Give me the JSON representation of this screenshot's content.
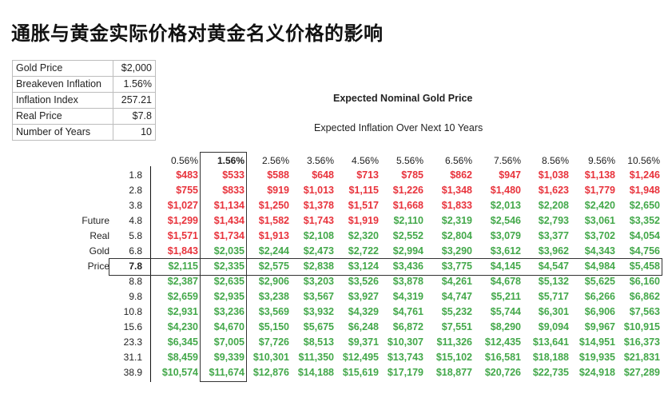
{
  "title": "通胀与黄金实际价格对黄金名义价格的影响",
  "params": [
    {
      "label": "Gold Price",
      "value": "$2,000"
    },
    {
      "label": "Breakeven Inflation",
      "value": "1.56%"
    },
    {
      "label": "Inflation Index",
      "value": "257.21"
    },
    {
      "label": "Real Price",
      "value": "$7.8"
    },
    {
      "label": "Number of Years",
      "value": "10"
    }
  ],
  "table_title": "Expected Nominal Gold Price",
  "column_axis_label": "Expected Inflation Over Next 10 Years",
  "row_axis_label": [
    "Future",
    "Real",
    "Gold",
    "Price"
  ],
  "colors": {
    "below_current": "#e8333c",
    "above_current": "#43a84a"
  },
  "chart_data": {
    "type": "table",
    "columns": [
      "0.56%",
      "1.56%",
      "2.56%",
      "3.56%",
      "4.56%",
      "5.56%",
      "6.56%",
      "7.56%",
      "8.56%",
      "9.56%",
      "10.56%"
    ],
    "selected_column": 1,
    "selected_row": 6,
    "rows": [
      {
        "label": "1.8",
        "values": [
          "$483",
          "$533",
          "$588",
          "$648",
          "$713",
          "$785",
          "$862",
          "$947",
          "$1,038",
          "$1,138",
          "$1,246"
        ]
      },
      {
        "label": "2.8",
        "values": [
          "$755",
          "$833",
          "$919",
          "$1,013",
          "$1,115",
          "$1,226",
          "$1,348",
          "$1,480",
          "$1,623",
          "$1,779",
          "$1,948"
        ]
      },
      {
        "label": "3.8",
        "values": [
          "$1,027",
          "$1,134",
          "$1,250",
          "$1,378",
          "$1,517",
          "$1,668",
          "$1,833",
          "$2,013",
          "$2,208",
          "$2,420",
          "$2,650"
        ]
      },
      {
        "label": "4.8",
        "values": [
          "$1,299",
          "$1,434",
          "$1,582",
          "$1,743",
          "$1,919",
          "$2,110",
          "$2,319",
          "$2,546",
          "$2,793",
          "$3,061",
          "$3,352"
        ]
      },
      {
        "label": "5.8",
        "values": [
          "$1,571",
          "$1,734",
          "$1,913",
          "$2,108",
          "$2,320",
          "$2,552",
          "$2,804",
          "$3,079",
          "$3,377",
          "$3,702",
          "$4,054"
        ]
      },
      {
        "label": "6.8",
        "values": [
          "$1,843",
          "$2,035",
          "$2,244",
          "$2,473",
          "$2,722",
          "$2,994",
          "$3,290",
          "$3,612",
          "$3,962",
          "$4,343",
          "$4,756"
        ]
      },
      {
        "label": "7.8",
        "values": [
          "$2,115",
          "$2,335",
          "$2,575",
          "$2,838",
          "$3,124",
          "$3,436",
          "$3,775",
          "$4,145",
          "$4,547",
          "$4,984",
          "$5,458"
        ]
      },
      {
        "label": "8.8",
        "values": [
          "$2,387",
          "$2,635",
          "$2,906",
          "$3,203",
          "$3,526",
          "$3,878",
          "$4,261",
          "$4,678",
          "$5,132",
          "$5,625",
          "$6,160"
        ]
      },
      {
        "label": "9.8",
        "values": [
          "$2,659",
          "$2,935",
          "$3,238",
          "$3,567",
          "$3,927",
          "$4,319",
          "$4,747",
          "$5,211",
          "$5,717",
          "$6,266",
          "$6,862"
        ]
      },
      {
        "label": "10.8",
        "values": [
          "$2,931",
          "$3,236",
          "$3,569",
          "$3,932",
          "$4,329",
          "$4,761",
          "$5,232",
          "$5,744",
          "$6,301",
          "$6,906",
          "$7,563"
        ]
      },
      {
        "label": "15.6",
        "values": [
          "$4,230",
          "$4,670",
          "$5,150",
          "$5,675",
          "$6,248",
          "$6,872",
          "$7,551",
          "$8,290",
          "$9,094",
          "$9,967",
          "$10,915"
        ]
      },
      {
        "label": "23.3",
        "values": [
          "$6,345",
          "$7,005",
          "$7,726",
          "$8,513",
          "$9,371",
          "$10,307",
          "$11,326",
          "$12,435",
          "$13,641",
          "$14,951",
          "$16,373"
        ]
      },
      {
        "label": "31.1",
        "values": [
          "$8,459",
          "$9,339",
          "$10,301",
          "$11,350",
          "$12,495",
          "$13,743",
          "$15,102",
          "$16,581",
          "$18,188",
          "$19,935",
          "$21,831"
        ]
      },
      {
        "label": "38.9",
        "values": [
          "$10,574",
          "$11,674",
          "$12,876",
          "$14,188",
          "$15,619",
          "$17,179",
          "$18,877",
          "$20,726",
          "$22,735",
          "$24,918",
          "$27,289"
        ]
      }
    ]
  }
}
